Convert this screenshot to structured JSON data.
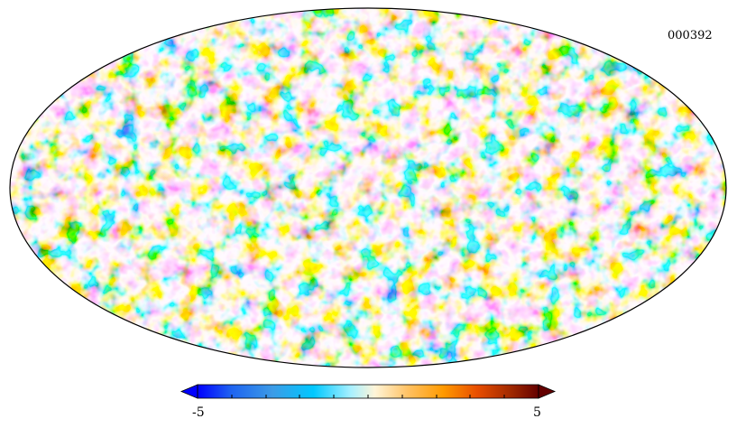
{
  "map": {
    "label": "000392",
    "projection": "mollweide",
    "colormap": "planck",
    "colormap_stops": [
      "#0000ff",
      "#1f64f0",
      "#3c9be6",
      "#00c8ff",
      "#a8f0ff",
      "#fff5d8",
      "#ffc060",
      "#ff9a00",
      "#e84e00",
      "#a02800",
      "#640000"
    ]
  },
  "colorbar": {
    "min_label": "-5",
    "max_label": "5",
    "min": -5,
    "max": 5
  }
}
